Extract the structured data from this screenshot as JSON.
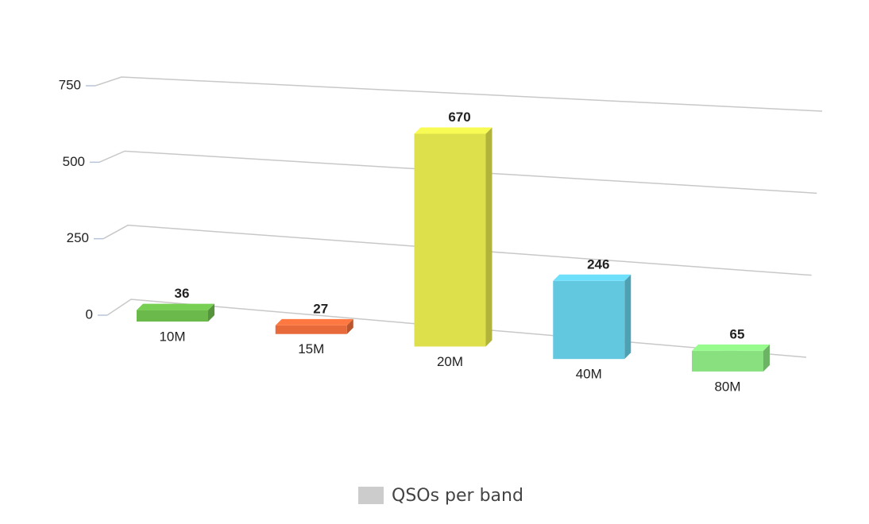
{
  "chart_data": {
    "type": "bar3d",
    "categories": [
      "10M",
      "15M",
      "20M",
      "40M",
      "80M"
    ],
    "series": [
      {
        "name": "QSOs per band",
        "color": "#cccccc",
        "values": [
          36,
          27,
          670,
          246,
          65
        ]
      }
    ],
    "colors": [
      "#6ab94a",
      "#e86a3a",
      "#dde04a",
      "#62c8e0",
      "#88e07e"
    ],
    "ylim": [
      0,
      750
    ],
    "yticks": [
      0,
      250,
      500,
      750
    ],
    "grid": true,
    "legend": "bottom"
  }
}
